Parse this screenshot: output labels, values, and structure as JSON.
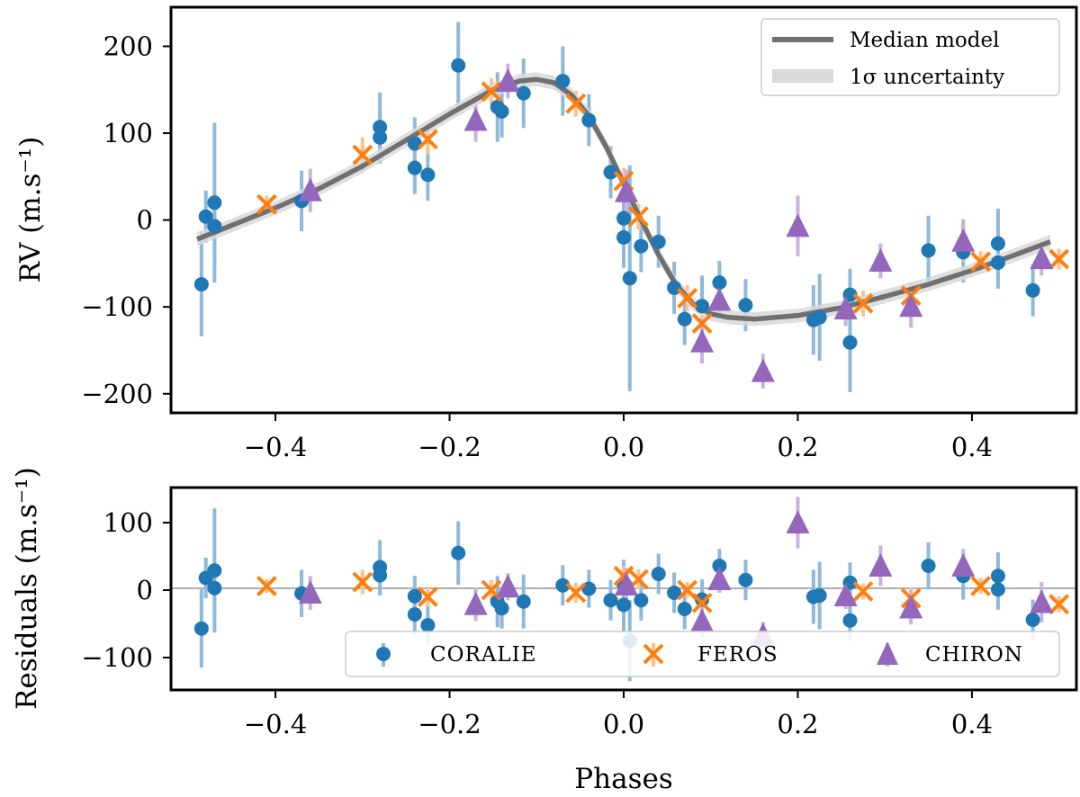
{
  "colors": {
    "coralie": "#1f77b4",
    "coralie_err": "#8fb9da",
    "feros": "#ff7f0e",
    "feros_err": "#ffc08a",
    "chiron": "#9467bd",
    "chiron_err": "#c9b2de",
    "model": "#707070",
    "band": "#d9d9d9",
    "zero_line": "#808080"
  },
  "chart_data": [
    {
      "id": "rv",
      "type": "scatter",
      "ylabel": "RV (m.s⁻¹)",
      "xlim": [
        -0.52,
        0.52
      ],
      "ylim": [
        -222,
        245
      ],
      "xticks": [
        -0.4,
        -0.2,
        0.0,
        0.2,
        0.4
      ],
      "xtick_labels": [
        "−0.4",
        "−0.2",
        "0.0",
        "0.2",
        "0.4"
      ],
      "yticks": [
        -200,
        -100,
        0,
        100,
        200
      ],
      "ytick_labels": [
        "−200",
        "−100",
        "0",
        "100",
        "200"
      ],
      "legend": {
        "position": "top-right",
        "entries": [
          "Median model",
          "1σ uncertainty"
        ]
      },
      "model": {
        "name": "Median model",
        "band_halfwidth": 8,
        "x": [
          -0.49,
          -0.45,
          -0.4,
          -0.35,
          -0.3,
          -0.25,
          -0.2,
          -0.15,
          -0.12,
          -0.1,
          -0.08,
          -0.06,
          -0.04,
          -0.02,
          0.0,
          0.02,
          0.04,
          0.06,
          0.08,
          0.1,
          0.12,
          0.15,
          0.2,
          0.25,
          0.3,
          0.35,
          0.4,
          0.45,
          0.49
        ],
        "y": [
          -22,
          -6,
          14,
          36,
          62,
          92,
          122,
          150,
          160,
          162,
          158,
          144,
          120,
          84,
          42,
          0,
          -40,
          -74,
          -97,
          -108,
          -112,
          -114,
          -110,
          -101,
          -88,
          -74,
          -58,
          -40,
          -25
        ]
      },
      "series": [
        {
          "name": "CORALIE",
          "marker": "circle",
          "points": [
            [
              -0.485,
              -74,
              60
            ],
            [
              -0.48,
              4,
              30
            ],
            [
              -0.47,
              20,
              92
            ],
            [
              -0.47,
              -7,
              40
            ],
            [
              -0.37,
              22,
              35
            ],
            [
              -0.28,
              95,
              30
            ],
            [
              -0.28,
              107,
              40
            ],
            [
              -0.24,
              88,
              30
            ],
            [
              -0.24,
              60,
              30
            ],
            [
              -0.225,
              52,
              30
            ],
            [
              -0.19,
              178,
              50
            ],
            [
              -0.145,
              130,
              40
            ],
            [
              -0.14,
              125,
              30
            ],
            [
              -0.115,
              146,
              40
            ],
            [
              -0.07,
              160,
              40
            ],
            [
              -0.04,
              115,
              30
            ],
            [
              -0.015,
              55,
              30
            ],
            [
              0.0,
              2,
              40
            ],
            [
              0.0,
              -20,
              35
            ],
            [
              0.007,
              -67,
              130
            ],
            [
              0.02,
              -30,
              30
            ],
            [
              0.04,
              -25,
              30
            ],
            [
              0.058,
              -78,
              30
            ],
            [
              0.07,
              -114,
              30
            ],
            [
              0.09,
              -99,
              35
            ],
            [
              0.11,
              -72,
              25
            ],
            [
              0.14,
              -98,
              30
            ],
            [
              0.218,
              -115,
              40
            ],
            [
              0.225,
              -112,
              50
            ],
            [
              0.26,
              -86,
              30
            ],
            [
              0.26,
              -141,
              57
            ],
            [
              0.35,
              -35,
              40
            ],
            [
              0.39,
              -37,
              35
            ],
            [
              0.43,
              -49,
              30
            ],
            [
              0.43,
              -27,
              40
            ],
            [
              0.47,
              -81,
              30
            ]
          ]
        },
        {
          "name": "FEROS",
          "marker": "x",
          "points": [
            [
              -0.41,
              18,
              10
            ],
            [
              -0.3,
              75,
              20
            ],
            [
              -0.225,
              93,
              18
            ],
            [
              -0.152,
              148,
              15
            ],
            [
              -0.055,
              134,
              15
            ],
            [
              0.0,
              45,
              15
            ],
            [
              0.017,
              4,
              15
            ],
            [
              0.073,
              -90,
              15
            ],
            [
              0.09,
              -119,
              15
            ],
            [
              0.275,
              -96,
              15
            ],
            [
              0.33,
              -87,
              15
            ],
            [
              0.41,
              -48,
              12
            ],
            [
              0.5,
              -45,
              12
            ]
          ]
        },
        {
          "name": "CHIRON",
          "marker": "triangle",
          "points": [
            [
              -0.36,
              34,
              25
            ],
            [
              -0.17,
              115,
              25
            ],
            [
              -0.133,
              160,
              20
            ],
            [
              0.003,
              33,
              25
            ],
            [
              0.09,
              -140,
              25
            ],
            [
              0.11,
              -92,
              20
            ],
            [
              0.16,
              -174,
              20
            ],
            [
              0.2,
              -7,
              35
            ],
            [
              0.255,
              -102,
              20
            ],
            [
              0.295,
              -47,
              20
            ],
            [
              0.33,
              -99,
              25
            ],
            [
              0.39,
              -24,
              25
            ],
            [
              0.48,
              -44,
              20
            ]
          ]
        }
      ]
    },
    {
      "id": "residuals",
      "type": "scatter",
      "xlabel": "Phases",
      "ylabel": "Residuals (m.s⁻¹)",
      "xlim": [
        -0.52,
        0.52
      ],
      "ylim": [
        -148,
        152
      ],
      "xticks": [
        -0.4,
        -0.2,
        0.0,
        0.2,
        0.4
      ],
      "xtick_labels": [
        "−0.4",
        "−0.2",
        "0.0",
        "0.2",
        "0.4"
      ],
      "yticks": [
        -100,
        0,
        100
      ],
      "ytick_labels": [
        "−100",
        "0",
        "100"
      ],
      "zero_line": true,
      "legend": {
        "position": "bottom-right",
        "entries": [
          "CORALIE",
          "FEROS",
          "CHIRON"
        ]
      },
      "series": [
        {
          "name": "CORALIE",
          "marker": "circle",
          "points": [
            [
              -0.485,
              -57,
              58
            ],
            [
              -0.48,
              18,
              30
            ],
            [
              -0.47,
              29,
              92
            ],
            [
              -0.47,
              3,
              40
            ],
            [
              -0.37,
              -5,
              35
            ],
            [
              -0.28,
              22,
              30
            ],
            [
              -0.28,
              34,
              40
            ],
            [
              -0.24,
              -9,
              30
            ],
            [
              -0.24,
              -36,
              30
            ],
            [
              -0.225,
              -52,
              30
            ],
            [
              -0.19,
              55,
              47
            ],
            [
              -0.145,
              -17,
              38
            ],
            [
              -0.14,
              -27,
              30
            ],
            [
              -0.115,
              -17,
              40
            ],
            [
              -0.07,
              7,
              30
            ],
            [
              -0.04,
              2,
              28
            ],
            [
              -0.015,
              -15,
              30
            ],
            [
              0.0,
              9,
              36
            ],
            [
              0.0,
              -22,
              40
            ],
            [
              0.007,
              -75,
              60
            ],
            [
              0.02,
              -15,
              30
            ],
            [
              0.04,
              24,
              30
            ],
            [
              0.058,
              -4,
              30
            ],
            [
              0.07,
              -28,
              30
            ],
            [
              0.09,
              -14,
              30
            ],
            [
              0.11,
              36,
              25
            ],
            [
              0.14,
              15,
              30
            ],
            [
              0.218,
              -10,
              40
            ],
            [
              0.225,
              -8,
              50
            ],
            [
              0.26,
              11,
              30
            ],
            [
              0.26,
              -45,
              30
            ],
            [
              0.35,
              36,
              35
            ],
            [
              0.39,
              21,
              35
            ],
            [
              0.43,
              1,
              30
            ],
            [
              0.43,
              21,
              35
            ],
            [
              0.47,
              -44,
              30
            ]
          ]
        },
        {
          "name": "FEROS",
          "marker": "x",
          "points": [
            [
              -0.41,
              6,
              10
            ],
            [
              -0.3,
              12,
              18
            ],
            [
              -0.225,
              -10,
              15
            ],
            [
              -0.152,
              0,
              15
            ],
            [
              -0.055,
              -4,
              15
            ],
            [
              0.0,
              21,
              15
            ],
            [
              0.017,
              16,
              15
            ],
            [
              0.073,
              0,
              12
            ],
            [
              0.09,
              -19,
              15
            ],
            [
              0.275,
              -2,
              12
            ],
            [
              0.33,
              -12,
              15
            ],
            [
              0.41,
              6,
              12
            ],
            [
              0.5,
              -21,
              12
            ]
          ]
        },
        {
          "name": "CHIRON",
          "marker": "triangle",
          "points": [
            [
              -0.36,
              -4,
              25
            ],
            [
              -0.17,
              -21,
              25
            ],
            [
              -0.133,
              5,
              20
            ],
            [
              0.003,
              8,
              25
            ],
            [
              0.09,
              -46,
              25
            ],
            [
              0.11,
              16,
              20
            ],
            [
              0.16,
              -67,
              20
            ],
            [
              0.2,
              100,
              38
            ],
            [
              0.255,
              -8,
              20
            ],
            [
              0.295,
              36,
              30
            ],
            [
              0.33,
              -26,
              25
            ],
            [
              0.39,
              36,
              25
            ],
            [
              0.48,
              -18,
              30
            ]
          ]
        }
      ]
    }
  ]
}
